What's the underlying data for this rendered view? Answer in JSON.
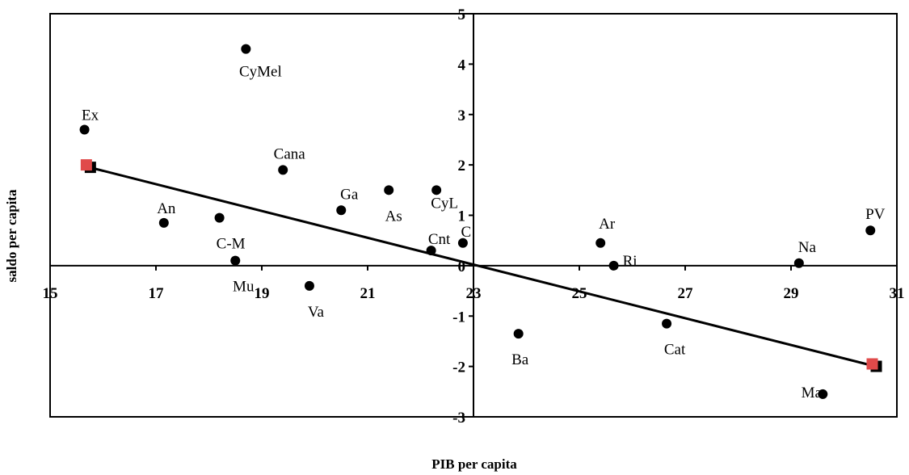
{
  "chart_data": {
    "type": "scatter",
    "xlabel": "PIB per capita",
    "ylabel": "saldo per capita",
    "xlim": [
      15,
      31
    ],
    "ylim": [
      -3,
      5
    ],
    "x_ticks": [
      "15",
      "17",
      "19",
      "21",
      "23",
      "25",
      "27",
      "29",
      "31"
    ],
    "y_ticks": [
      "-3",
      "-2",
      "-1",
      "0",
      "1",
      "2",
      "3",
      "4",
      "5"
    ],
    "grid": false,
    "legend": "none",
    "axis_crossing": {
      "x": 23,
      "y": 0
    },
    "colors": {
      "points": "#000000",
      "line": "#000000",
      "endpoints": "#e04a4a"
    },
    "points": [
      {
        "label": "Ex",
        "x": 15.65,
        "y": 2.7
      },
      {
        "label": "CyMel",
        "x": 18.7,
        "y": 4.3
      },
      {
        "label": "Cana",
        "x": 19.4,
        "y": 1.9
      },
      {
        "label": "An",
        "x": 17.15,
        "y": 0.85
      },
      {
        "label": "C-M",
        "x": 18.2,
        "y": 0.95
      },
      {
        "label": "Mu",
        "x": 18.5,
        "y": 0.1
      },
      {
        "label": "Va",
        "x": 19.9,
        "y": -0.4
      },
      {
        "label": "Ga",
        "x": 20.5,
        "y": 1.1
      },
      {
        "label": "As",
        "x": 21.4,
        "y": 1.5
      },
      {
        "label": "CyL",
        "x": 22.3,
        "y": 1.5
      },
      {
        "label": "Cnt",
        "x": 22.2,
        "y": 0.3
      },
      {
        "label": "C",
        "x": 22.8,
        "y": 0.45
      },
      {
        "label": "Ba",
        "x": 23.85,
        "y": -1.35
      },
      {
        "label": "Ar",
        "x": 25.4,
        "y": 0.45
      },
      {
        "label": "Ri",
        "x": 25.65,
        "y": 0.0
      },
      {
        "label": "Cat",
        "x": 26.65,
        "y": -1.15
      },
      {
        "label": "Na",
        "x": 29.15,
        "y": 0.05
      },
      {
        "label": "PV",
        "x": 30.5,
        "y": 0.7
      },
      {
        "label": "Ma",
        "x": 29.6,
        "y": -2.55
      }
    ],
    "trend_line": {
      "x1": 15.75,
      "y1": 1.95,
      "x2": 30.6,
      "y2": -2.0
    },
    "trend_endpoints": [
      {
        "x": 15.7,
        "y": 2.0
      },
      {
        "x": 30.55,
        "y": -1.95
      }
    ]
  }
}
